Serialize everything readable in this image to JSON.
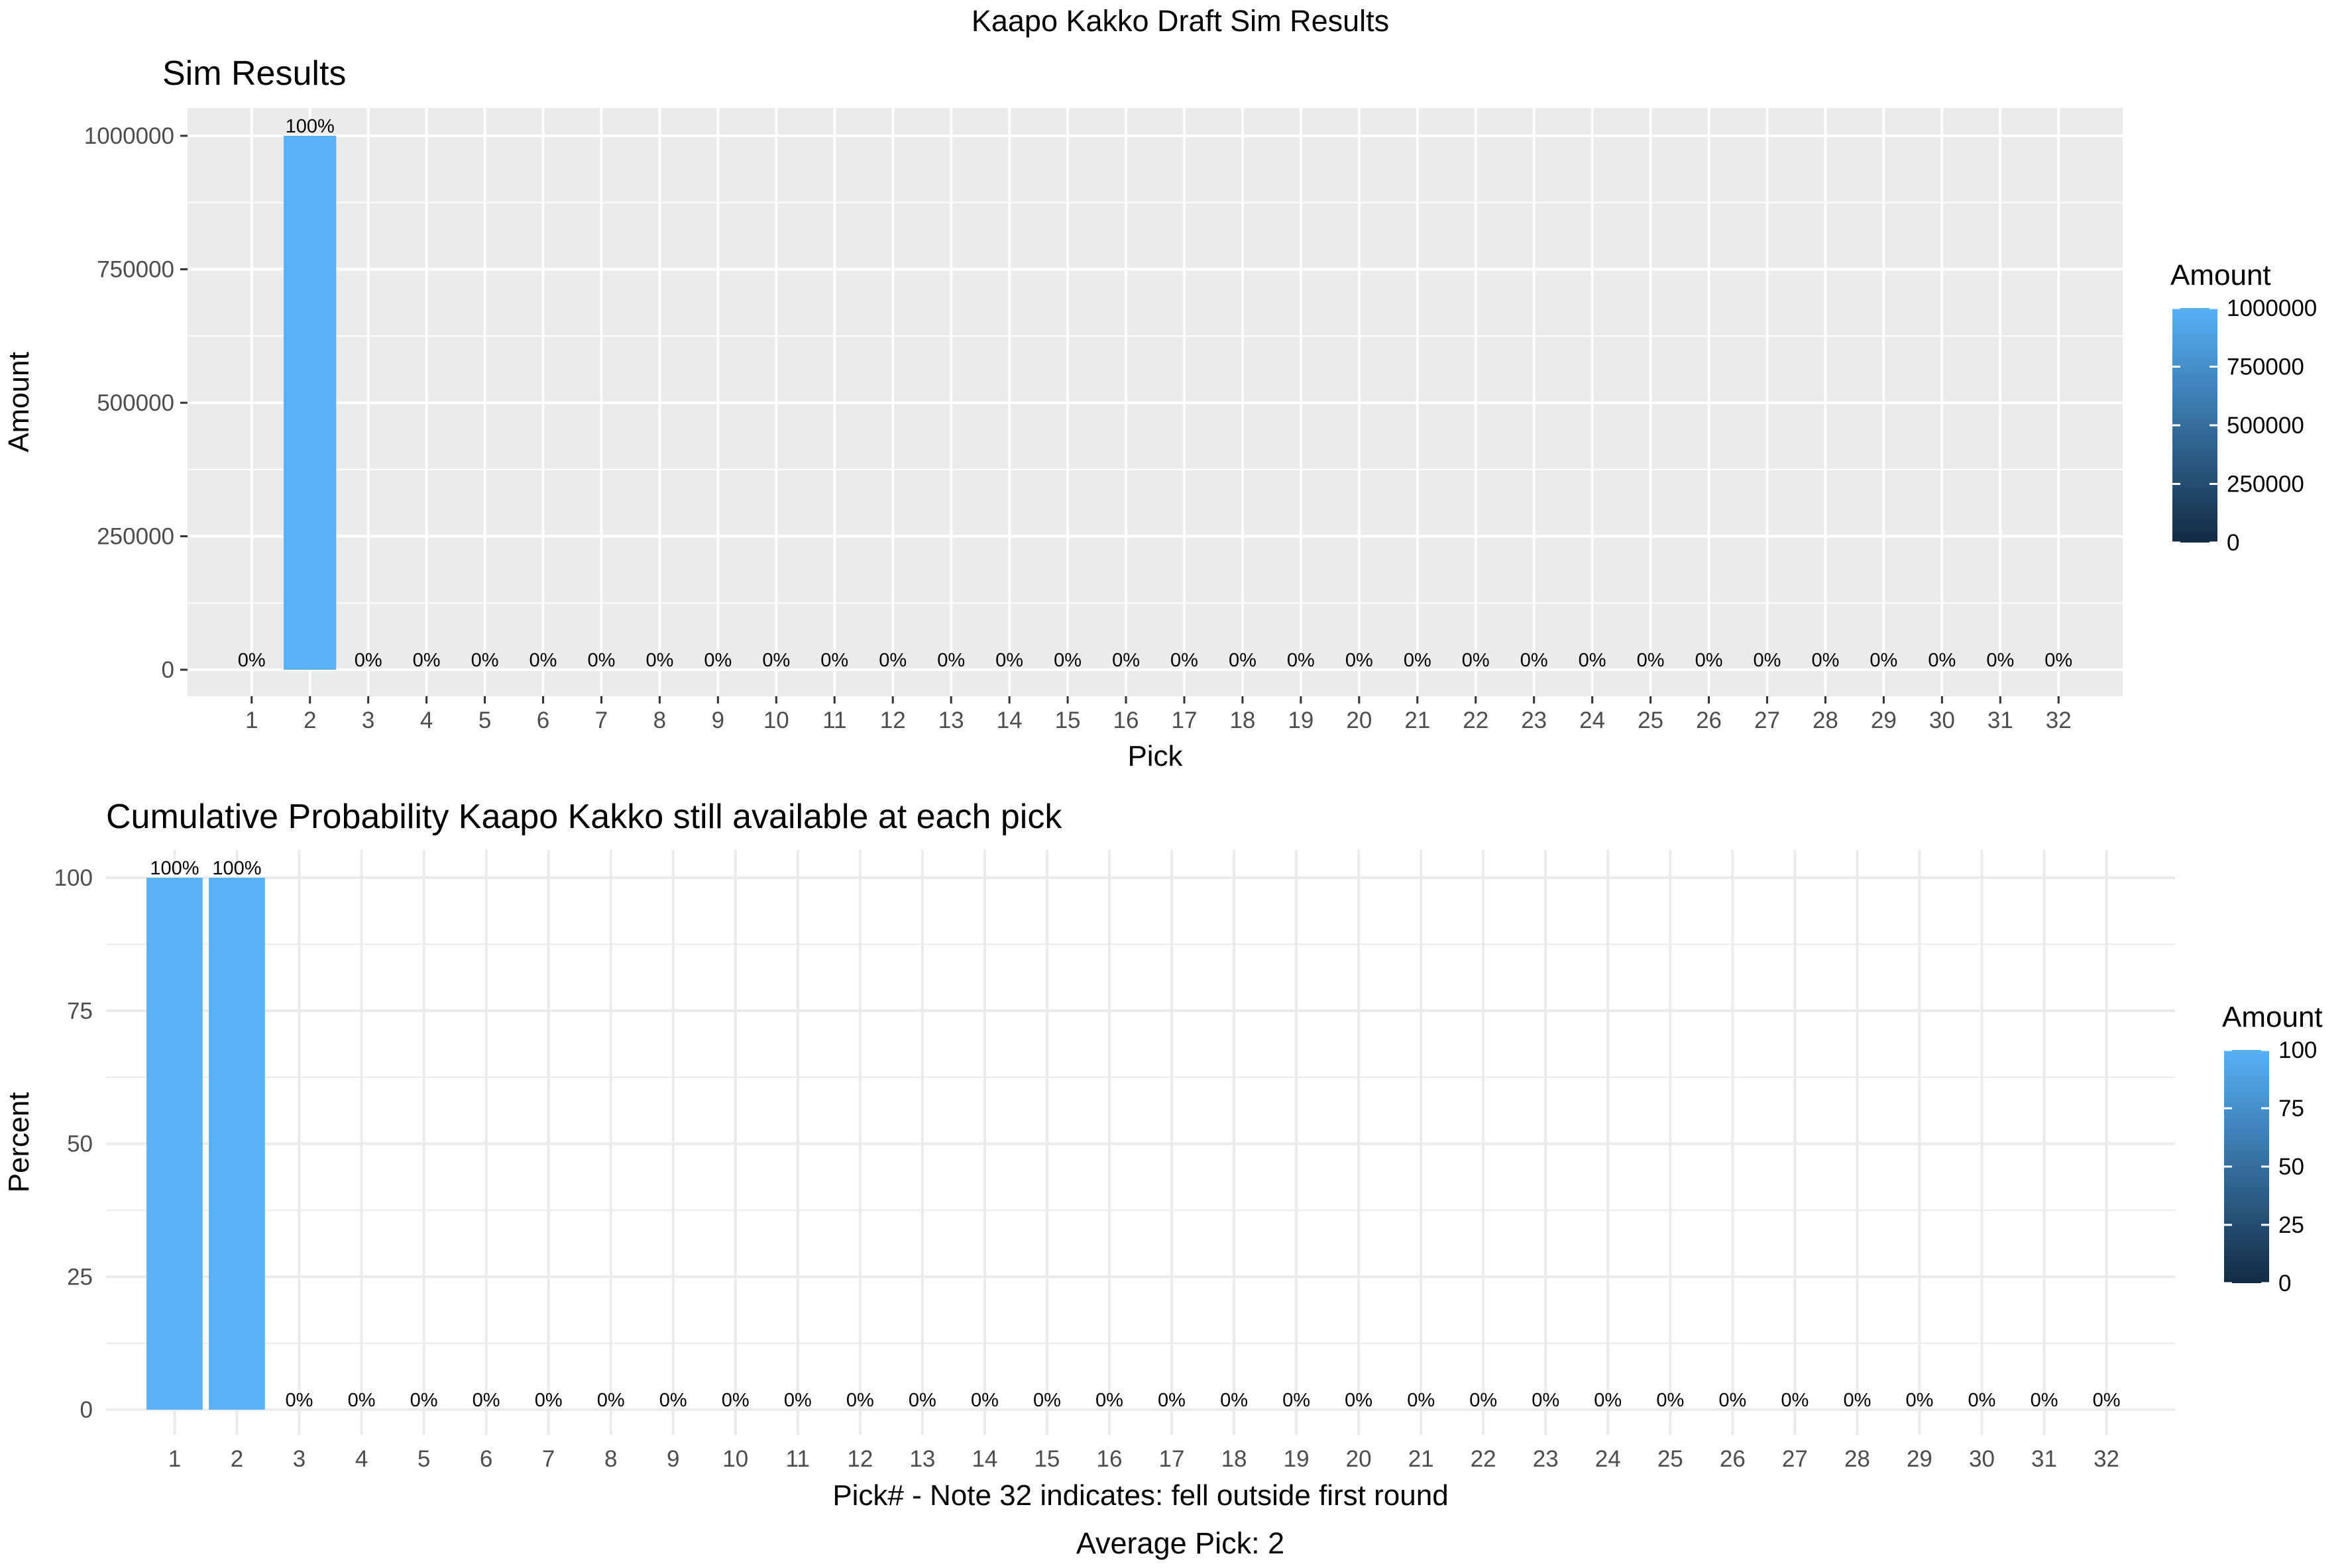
{
  "page": {
    "title": "Kaapo Kakko Draft Sim Results",
    "footer": "Average Pick: 2"
  },
  "colors": {
    "bar_fill": "#56B1F7",
    "panel_gray": "#EBEBEB",
    "grid_white": "#FFFFFF",
    "grid_light": "#EBEBEB",
    "gradient_low": "#132B43",
    "gradient_high": "#56B1F7",
    "axis_text": "#4D4D4D",
    "text": "#000000"
  },
  "chart_data": [
    {
      "type": "bar",
      "title": "Sim Results",
      "xlabel": "Pick",
      "ylabel": "Amount",
      "categories": [
        "1",
        "2",
        "3",
        "4",
        "5",
        "6",
        "7",
        "8",
        "9",
        "10",
        "11",
        "12",
        "13",
        "14",
        "15",
        "16",
        "17",
        "18",
        "19",
        "20",
        "21",
        "22",
        "23",
        "24",
        "25",
        "26",
        "27",
        "28",
        "29",
        "30",
        "31",
        "32"
      ],
      "values": [
        0,
        1000000,
        0,
        0,
        0,
        0,
        0,
        0,
        0,
        0,
        0,
        0,
        0,
        0,
        0,
        0,
        0,
        0,
        0,
        0,
        0,
        0,
        0,
        0,
        0,
        0,
        0,
        0,
        0,
        0,
        0,
        0
      ],
      "data_labels": [
        "0%",
        "100%",
        "0%",
        "0%",
        "0%",
        "0%",
        "0%",
        "0%",
        "0%",
        "0%",
        "0%",
        "0%",
        "0%",
        "0%",
        "0%",
        "0%",
        "0%",
        "0%",
        "0%",
        "0%",
        "0%",
        "0%",
        "0%",
        "0%",
        "0%",
        "0%",
        "0%",
        "0%",
        "0%",
        "0%",
        "0%",
        "0%"
      ],
      "ylim": [
        0,
        1000000
      ],
      "y_ticks": [
        0,
        250000,
        500000,
        750000,
        1000000
      ],
      "y_tick_labels": [
        "0",
        "250000",
        "500000",
        "750000",
        "1000000"
      ],
      "grid": true,
      "theme": "gray",
      "legend": {
        "title": "Amount",
        "position": "right",
        "ticks": [
          0,
          250000,
          500000,
          750000,
          1000000
        ],
        "tick_labels": [
          "0",
          "250000",
          "500000",
          "750000",
          "1000000"
        ]
      }
    },
    {
      "type": "bar",
      "title": "Cumulative Probability Kaapo Kakko still available at each pick",
      "xlabel": "Pick# - Note 32 indicates: fell outside first round",
      "ylabel": "Percent",
      "categories": [
        "1",
        "2",
        "3",
        "4",
        "5",
        "6",
        "7",
        "8",
        "9",
        "10",
        "11",
        "12",
        "13",
        "14",
        "15",
        "16",
        "17",
        "18",
        "19",
        "20",
        "21",
        "22",
        "23",
        "24",
        "25",
        "26",
        "27",
        "28",
        "29",
        "30",
        "31",
        "32"
      ],
      "values": [
        100,
        100,
        0,
        0,
        0,
        0,
        0,
        0,
        0,
        0,
        0,
        0,
        0,
        0,
        0,
        0,
        0,
        0,
        0,
        0,
        0,
        0,
        0,
        0,
        0,
        0,
        0,
        0,
        0,
        0,
        0,
        0
      ],
      "data_labels": [
        "100%",
        "100%",
        "0%",
        "0%",
        "0%",
        "0%",
        "0%",
        "0%",
        "0%",
        "0%",
        "0%",
        "0%",
        "0%",
        "0%",
        "0%",
        "0%",
        "0%",
        "0%",
        "0%",
        "0%",
        "0%",
        "0%",
        "0%",
        "0%",
        "0%",
        "0%",
        "0%",
        "0%",
        "0%",
        "0%",
        "0%",
        "0%"
      ],
      "ylim": [
        0,
        100
      ],
      "y_ticks": [
        0,
        25,
        50,
        75,
        100
      ],
      "y_tick_labels": [
        "0",
        "25",
        "50",
        "75",
        "100"
      ],
      "grid": true,
      "theme": "minimal",
      "legend": {
        "title": "Amount",
        "position": "right",
        "ticks": [
          0,
          25,
          50,
          75,
          100
        ],
        "tick_labels": [
          "0",
          "25",
          "50",
          "75",
          "100"
        ]
      }
    }
  ]
}
